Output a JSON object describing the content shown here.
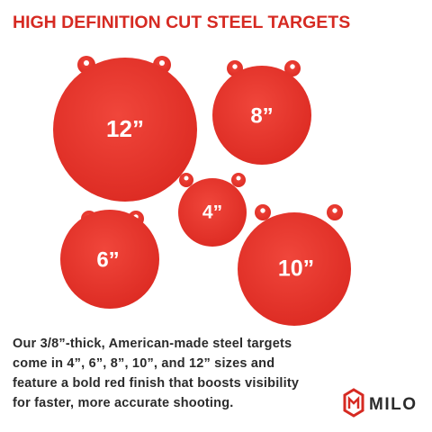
{
  "header": {
    "title": "HIGH DEFINITION CUT STEEL TARGETS"
  },
  "targets": [
    {
      "label": "12”"
    },
    {
      "label": "8”"
    },
    {
      "label": "4”"
    },
    {
      "label": "6”"
    },
    {
      "label": "10”"
    }
  ],
  "description": {
    "lines": [
      "Our 3/8”-thick, American-made steel targets",
      "come in 4”, 6”, 8”, 10”, and 12” sizes and",
      "feature a bold red finish that boosts visibility",
      "for faster, more accurate shooting."
    ]
  },
  "brand": {
    "name": "MILO"
  }
}
